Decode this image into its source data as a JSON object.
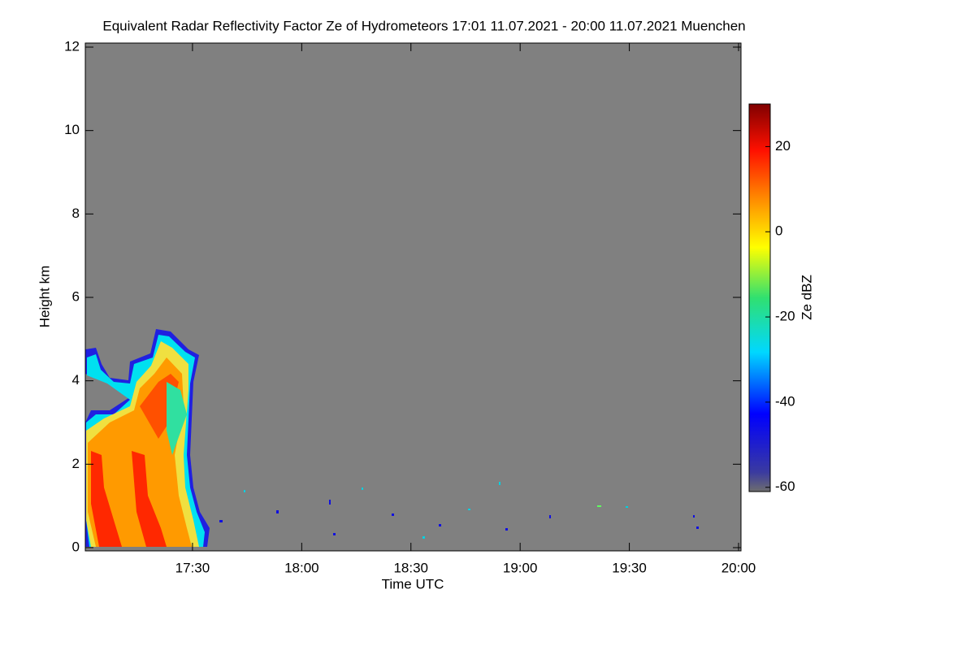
{
  "chart_data": {
    "type": "heatmap",
    "title": "Equivalent Radar Reflectivity Factor Ze of Hydrometeors   17:01 11.07.2021 - 20:00 11.07.2021 Muenchen",
    "xlabel": "Time UTC",
    "ylabel": "Height km",
    "xlim": [
      17.0167,
      20.0
    ],
    "xticks": [
      {
        "value": 17.5,
        "label": "17:30"
      },
      {
        "value": 18,
        "label": "18:00"
      },
      {
        "value": 18.5,
        "label": "18:30"
      },
      {
        "value": 19,
        "label": "19:00"
      },
      {
        "value": 19.5,
        "label": "19:30"
      },
      {
        "value": 20,
        "label": "20:00"
      }
    ],
    "ylim": [
      0,
      12
    ],
    "yticks": [
      0,
      2,
      4,
      6,
      8,
      10,
      12
    ],
    "colorbar": {
      "label": "Ze dBZ",
      "lim": [
        -61,
        30
      ],
      "ticks": [
        20,
        0,
        -20,
        -40,
        -60
      ]
    }
  }
}
